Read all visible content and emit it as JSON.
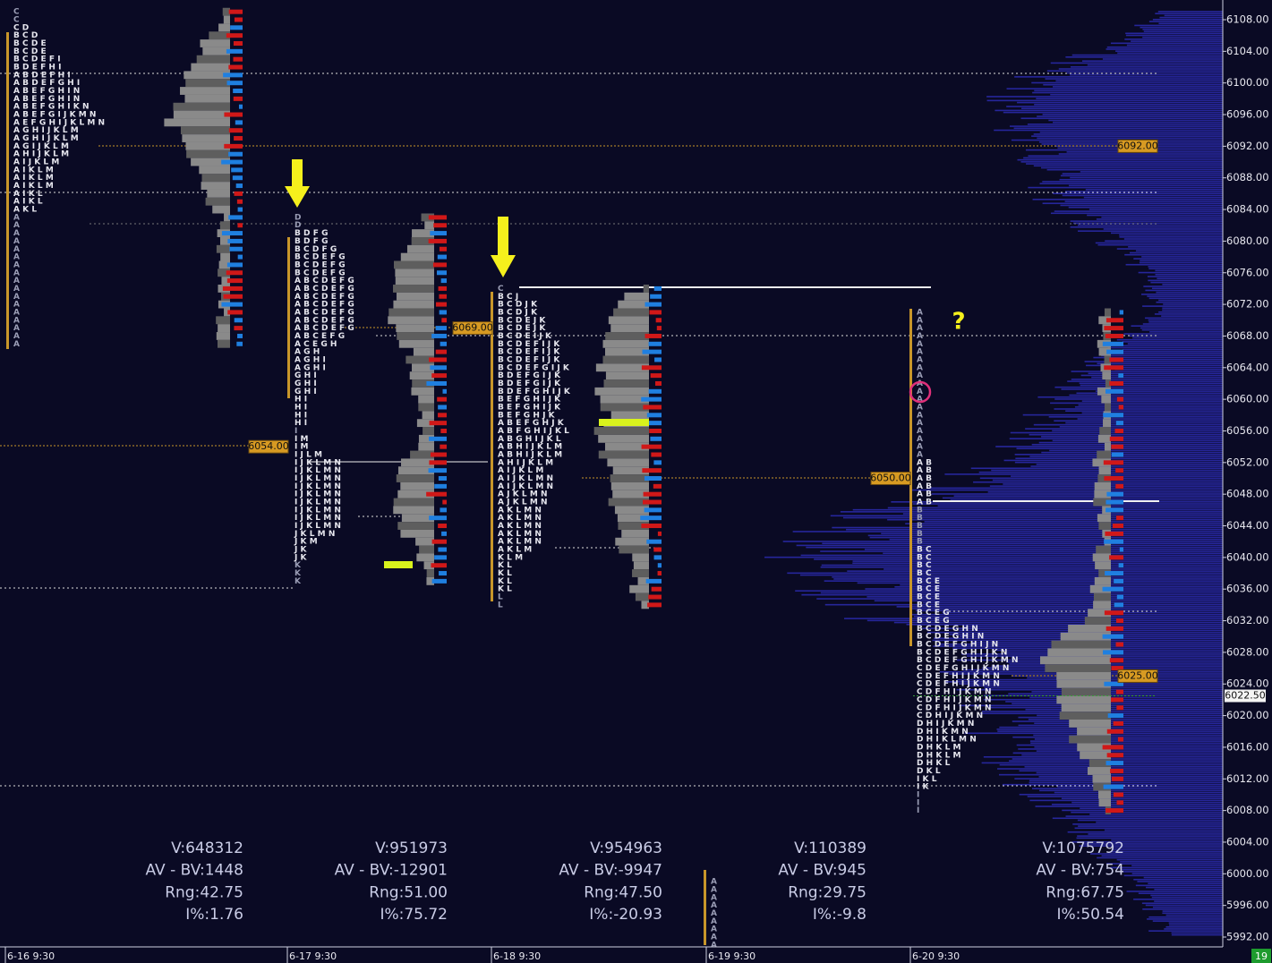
{
  "price_axis": {
    "ticks": [
      {
        "value": 6108,
        "label": "6108.00"
      },
      {
        "value": 6104,
        "label": "6104.00"
      },
      {
        "value": 6100,
        "label": "6100.00"
      },
      {
        "value": 6096,
        "label": "6096.00"
      },
      {
        "value": 6092,
        "label": "6092.00"
      },
      {
        "value": 6088,
        "label": "6088.00"
      },
      {
        "value": 6084,
        "label": "6084.00"
      },
      {
        "value": 6080,
        "label": "6080.00"
      },
      {
        "value": 6076,
        "label": "6076.00"
      },
      {
        "value": 6072,
        "label": "6072.00"
      },
      {
        "value": 6068,
        "label": "6068.00"
      },
      {
        "value": 6064,
        "label": "6064.00"
      },
      {
        "value": 6060,
        "label": "6060.00"
      },
      {
        "value": 6056,
        "label": "6056.00"
      },
      {
        "value": 6052,
        "label": "6052.00"
      },
      {
        "value": 6048,
        "label": "6048.00"
      },
      {
        "value": 6044,
        "label": "6044.00"
      },
      {
        "value": 6040,
        "label": "6040.00"
      },
      {
        "value": 6036,
        "label": "6036.00"
      },
      {
        "value": 6032,
        "label": "6032.00"
      },
      {
        "value": 6028,
        "label": "6028.00"
      },
      {
        "value": 6024,
        "label": "6024.00"
      },
      {
        "value": 6020,
        "label": "6020.00"
      },
      {
        "value": 6016,
        "label": "6016.00"
      },
      {
        "value": 6012,
        "label": "6012.00"
      },
      {
        "value": 6008,
        "label": "6008.00"
      },
      {
        "value": 6004,
        "label": "6004.00"
      },
      {
        "value": 6000,
        "label": "6000.00"
      },
      {
        "value": 5996,
        "label": "5996.00"
      },
      {
        "value": 5992,
        "label": "5992.00"
      }
    ]
  },
  "time_axis": {
    "labels": [
      "6-16  9:30",
      "6-17  9:30",
      "6-18  9:30",
      "6-19  9:30",
      "6-20  9:30"
    ]
  },
  "sessions": [
    {
      "stats": [
        "V:648312",
        "AV - BV:1448",
        "Rng:42.75",
        "I%:1.76"
      ],
      "tpo_rows": [
        "C",
        "C",
        "CD",
        "BCD",
        "BCDE",
        "BCDE",
        "BCDEFI",
        "BDEFHI",
        "ABDEFHI",
        "ABDEFGHI",
        "ABEFGHIN",
        "ABEFGHIN",
        "ABEFGHIKN",
        "ABEFGIJKMN",
        "AEFGHIJKLMN",
        "AGHIJKLM",
        "AGHIJKLM",
        "AGIJKLM",
        "AHIJKLM",
        "AIJKLM",
        "AIKLM",
        "AIKLM",
        "AIKLM",
        "AIKL",
        "AIKL",
        "AKL",
        "A",
        "A",
        "A",
        "A",
        "A",
        "A",
        "A",
        "A",
        "A",
        "A",
        "A",
        "A",
        "A",
        "A",
        "A",
        "A",
        "A"
      ]
    },
    {
      "stats": [
        "V:951973",
        "AV - BV:-12901",
        "Rng:51.00",
        "I%:75.72"
      ],
      "tpo_rows": [
        "D",
        "D",
        "BDFG",
        "BDFG",
        "BCDFG",
        "BCDEFG",
        "BCDEFG",
        "BCDEFG",
        "ABCDEFG",
        "ABCDEFG",
        "ABCDEFG",
        "ABCDEFG",
        "ABCDEFG",
        "ABCDEFG",
        "ABCDEFG",
        "ABCEFG",
        "ACEGH",
        "AGH",
        "AGHI",
        "AGHI",
        "GHI",
        "GHI",
        "GHI",
        "HI",
        "HI",
        "HI",
        "HI",
        "I",
        "IM",
        "IM",
        "IJLM",
        "IJKLMN",
        "IJKLMN",
        "IJKLMN",
        "IJKLMN",
        "IJKLMN",
        "IJKLMN",
        "IJKLMN",
        "IJKLMN",
        "IJKLMN",
        "JKLMN",
        "JKM",
        "JK",
        "JK",
        "K",
        "K",
        "K"
      ]
    },
    {
      "stats": [
        "V:954963",
        "AV - BV:-9947",
        "Rng:47.50",
        "I%:-20.93"
      ],
      "tpo_rows": [
        "C",
        "BCJ",
        "BCDJK",
        "BCDJK",
        "BCDEJK",
        "BCDEJK",
        "BCDEIJK",
        "BCDEFIJK",
        "BCDEFIJK",
        "BCDEFIJK",
        "BCDEFGIJK",
        "BDEFGIJK",
        "BDEFGIJK",
        "BDEFGHIJK",
        "BEFGHIJK",
        "BEFGHIJK",
        "BEFGHJK",
        "ABEFGHJK",
        "ABFGHIJKL",
        "ABGHIJKL",
        "ABHIJKLM",
        "ABHIJKLM",
        "AHIJKLM",
        "AIJKLM",
        "AIJKLMN",
        "AIJKLMN",
        "AJKLMN",
        "AJKLMN",
        "AKLMN",
        "AKLMN",
        "AKLMN",
        "AKLMN",
        "AKLMN",
        "AKLM",
        "KLM",
        "KL",
        "KL",
        "KL",
        "KL",
        "L",
        "L"
      ]
    },
    {
      "stats": [
        "V:110389",
        "AV - BV:945",
        "Rng:29.75",
        "I%:-9.8"
      ],
      "tpo_rows": [
        "A",
        "A",
        "A",
        "A",
        "A",
        "A",
        "A",
        "A",
        "A"
      ]
    },
    {
      "stats": [
        "V:1075792",
        "AV - BV:754",
        "Rng:67.75",
        "I%:50.54"
      ],
      "tpo_rows": [
        "A",
        "A",
        "A",
        "A",
        "A",
        "A",
        "A",
        "A",
        "A",
        "A",
        "A",
        "A",
        "A",
        "A",
        "A",
        "A",
        "A",
        "A",
        "A",
        "AB",
        "AB",
        "AB",
        "AB",
        "AB",
        "AB",
        "B",
        "B",
        "B",
        "B",
        "B",
        "BC",
        "BC",
        "BC",
        "BC",
        "BCE",
        "BCE",
        "BCE",
        "BCE",
        "BCEG",
        "BCEG",
        "BCDEGHN",
        "BCDEGHIN",
        "BCDEFGHIJN",
        "BCDEFGHIJKN",
        "BCDEFGHIJKMN",
        "CDEFGHIJKMN",
        "CDEFHIJKMN",
        "CDEFHIJKMN",
        "CDFHIJKMN",
        "CDFHIJKMN",
        "CDFHIJKMN",
        "CDHIJKMN",
        "DHIJKMN",
        "DHIKMN",
        "DHIKLMN",
        "DHKLM",
        "DHKLM",
        "DHKL",
        "DKL",
        "IKL",
        "IK",
        "I",
        "I",
        "I"
      ]
    }
  ],
  "price_tags": [
    {
      "value": 6092,
      "label": "6092.00"
    },
    {
      "value": 6069,
      "label": "6069.00"
    },
    {
      "value": 6054,
      "label": "6054.00"
    },
    {
      "value": 6050,
      "label": "6050.00"
    },
    {
      "value": 6025,
      "label": "6025.00"
    }
  ],
  "current_price": {
    "value": 6022.5,
    "label": "6022.50"
  },
  "annotation": "?",
  "badge": "19"
}
